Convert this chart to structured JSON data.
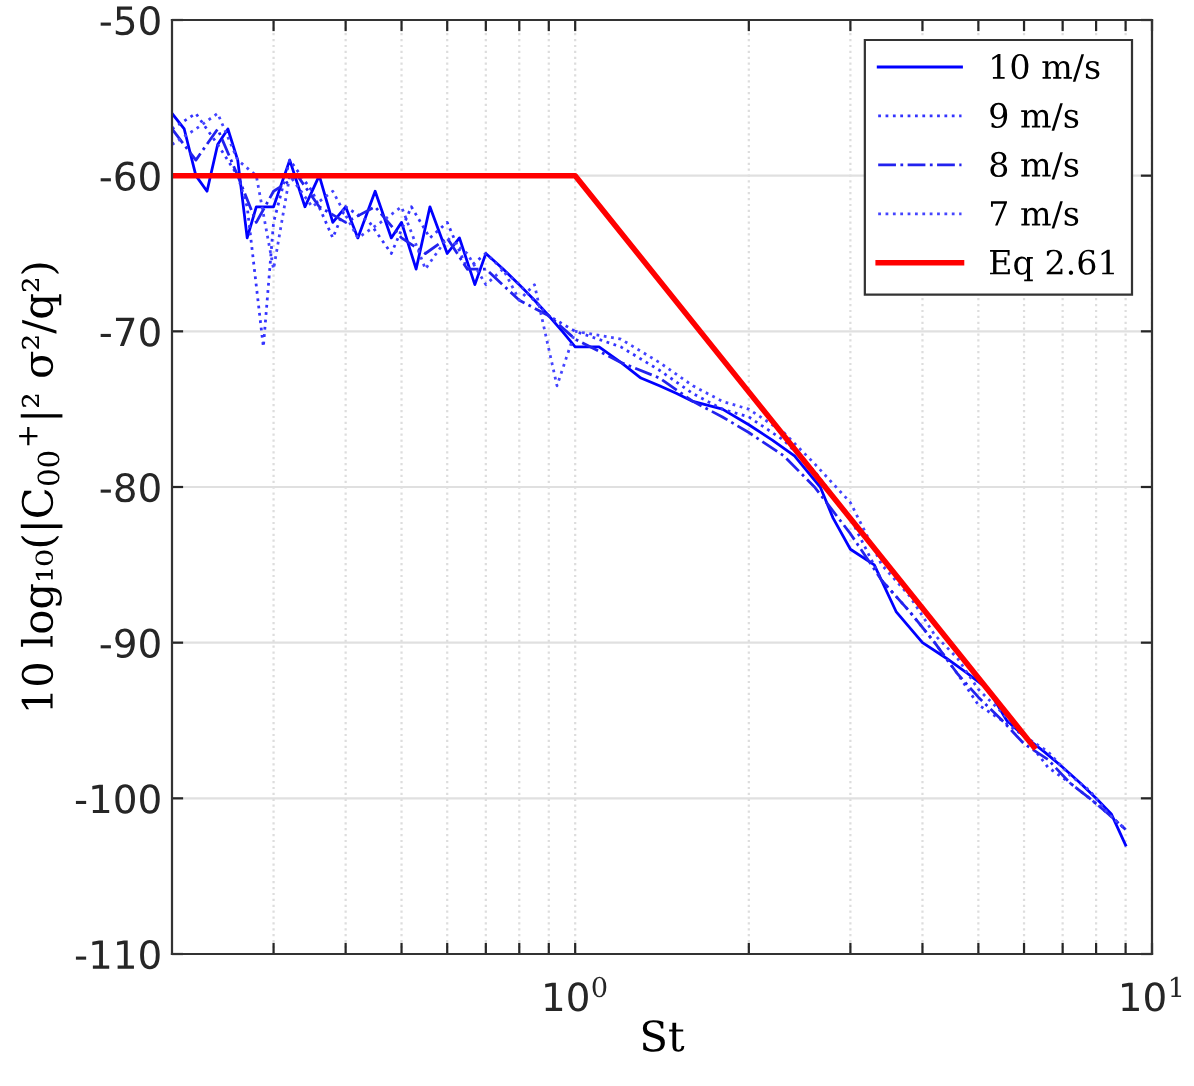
{
  "chart_data": {
    "type": "line",
    "xlabel": "St",
    "ylabel": "10 log₁₀(|C$_{00}$$^{+}$|² σ²/q²)",
    "log": "x",
    "xlim": [
      0.2,
      10
    ],
    "ylim": [
      -110,
      -50
    ],
    "xticks": [
      {
        "value": 0.3,
        "label": null
      },
      {
        "value": 0.4,
        "label": null
      },
      {
        "value": 0.5,
        "label": null
      },
      {
        "value": 0.6,
        "label": null
      },
      {
        "value": 0.7,
        "label": null
      },
      {
        "value": 0.8,
        "label": null
      },
      {
        "value": 0.9,
        "label": null
      },
      {
        "value": 1,
        "label": "10$^{0}$"
      },
      {
        "value": 2,
        "label": null
      },
      {
        "value": 3,
        "label": null
      },
      {
        "value": 4,
        "label": null
      },
      {
        "value": 5,
        "label": null
      },
      {
        "value": 6,
        "label": null
      },
      {
        "value": 7,
        "label": null
      },
      {
        "value": 8,
        "label": null
      },
      {
        "value": 9,
        "label": null
      },
      {
        "value": 10,
        "label": "10$^{1}$"
      }
    ],
    "yticks": [
      -110,
      -100,
      -90,
      -80,
      -70,
      -60,
      -50
    ],
    "grid": true,
    "legend": "top right",
    "series": [
      {
        "name": "10 m/s",
        "color": "#0000ff",
        "line_style": "solid",
        "x": [
          0.2,
          0.21,
          0.22,
          0.23,
          0.24,
          0.25,
          0.26,
          0.27,
          0.28,
          0.3,
          0.32,
          0.34,
          0.36,
          0.38,
          0.4,
          0.42,
          0.45,
          0.48,
          0.5,
          0.53,
          0.56,
          0.6,
          0.63,
          0.67,
          0.7,
          0.75,
          0.8,
          0.85,
          0.9,
          0.95,
          1.0,
          1.1,
          1.2,
          1.3,
          1.4,
          1.5,
          1.6,
          1.8,
          2.0,
          2.2,
          2.4,
          2.66,
          2.8,
          3.0,
          3.3,
          3.6,
          4.0,
          4.4,
          4.8,
          5.2,
          5.6,
          6.0,
          6.5,
          7.0,
          7.5,
          8.0,
          8.5,
          9.0
        ],
        "values": [
          -56,
          -57,
          -60,
          -61,
          -58,
          -57,
          -59,
          -64,
          -62,
          -62,
          -59,
          -62,
          -60,
          -63,
          -62,
          -64,
          -61,
          -64,
          -63,
          -66,
          -62,
          -65,
          -64,
          -67,
          -65,
          -66,
          -67,
          -68,
          -69,
          -70,
          -71,
          -71,
          -72,
          -73,
          -73.5,
          -74,
          -74.5,
          -75,
          -76,
          -77,
          -78,
          -80,
          -82,
          -84,
          -85,
          -88,
          -90,
          -91,
          -92,
          -93,
          -95,
          -96,
          -97,
          -98,
          -99,
          -100,
          -101,
          -103
        ]
      },
      {
        "name": "9 m/s",
        "color": "#3333ff",
        "line_style": "dotted",
        "x": [
          0.2,
          0.22,
          0.24,
          0.26,
          0.27,
          0.288,
          0.3,
          0.32,
          0.35,
          0.38,
          0.4,
          0.44,
          0.48,
          0.52,
          0.56,
          0.6,
          0.65,
          0.7,
          0.8,
          0.9,
          1.0,
          1.2,
          1.4,
          1.6,
          1.8,
          2.0,
          2.3,
          2.6,
          3.0,
          3.4,
          3.8,
          4.2,
          4.6,
          5.0,
          5.5,
          6.0,
          6.6,
          7.2,
          7.8,
          8.4,
          9.0
        ],
        "values": [
          -57,
          -56,
          -58,
          -60,
          -62,
          -71,
          -63,
          -59,
          -61,
          -64,
          -62,
          -63,
          -65,
          -62,
          -64,
          -63,
          -66,
          -65,
          -67,
          -69,
          -70,
          -71,
          -72.5,
          -74,
          -75,
          -75.5,
          -77,
          -79,
          -82,
          -86,
          -88,
          -90,
          -92,
          -94,
          -95,
          -96,
          -98,
          -99,
          -100,
          -101,
          -102
        ]
      },
      {
        "name": "8 m/s",
        "color": "#2222ee",
        "line_style": "dashdot",
        "x": [
          0.2,
          0.22,
          0.24,
          0.26,
          0.28,
          0.3,
          0.33,
          0.36,
          0.4,
          0.45,
          0.5,
          0.55,
          0.6,
          0.65,
          0.7,
          0.8,
          0.9,
          1.0,
          1.2,
          1.4,
          1.6,
          1.8,
          2.0,
          2.3,
          2.6,
          3.0,
          3.4,
          3.8,
          4.2,
          4.6,
          5.0,
          5.5,
          6.0,
          6.6,
          7.2,
          7.8,
          8.4,
          9.0
        ],
        "values": [
          -57,
          -59,
          -57,
          -60,
          -63,
          -61,
          -60,
          -62,
          -63,
          -62,
          -64,
          -65,
          -64,
          -66,
          -66,
          -68,
          -69,
          -70.5,
          -72,
          -73,
          -74.5,
          -75.5,
          -76.5,
          -78,
          -80,
          -83,
          -86,
          -88,
          -90,
          -92,
          -93.5,
          -95,
          -96.5,
          -97.5,
          -99,
          -100,
          -101,
          -102
        ]
      },
      {
        "name": "7 m/s",
        "color": "#4444ff",
        "line_style": "dotted",
        "x": [
          0.2,
          0.22,
          0.24,
          0.26,
          0.28,
          0.3,
          0.32,
          0.35,
          0.38,
          0.42,
          0.46,
          0.5,
          0.55,
          0.6,
          0.65,
          0.7,
          0.75,
          0.8,
          0.85,
          0.93,
          1.0,
          1.2,
          1.4,
          1.6,
          1.8,
          2.0,
          2.3,
          2.6,
          3.0,
          3.4,
          3.8,
          4.2,
          4.6,
          5.0,
          5.5,
          6.0,
          6.6,
          7.2,
          7.8,
          8.4,
          9.0
        ],
        "values": [
          -58,
          -57,
          -56,
          -59,
          -60,
          -66,
          -60,
          -62,
          -61,
          -64,
          -63,
          -62,
          -66,
          -64,
          -65,
          -67,
          -66,
          -68,
          -67,
          -73.5,
          -70,
          -70.5,
          -72,
          -73.5,
          -74.5,
          -75,
          -76.5,
          -78.5,
          -81,
          -85,
          -87,
          -89.5,
          -91,
          -93,
          -94.5,
          -96,
          -97,
          -98.5,
          -99.5,
          -101,
          -102
        ]
      },
      {
        "name": "Eq 2.61",
        "color": "#ff0000",
        "line_style": "solid",
        "x": [
          0.2,
          1.0,
          6.24
        ],
        "values": [
          -60,
          -60,
          -96.7
        ]
      }
    ]
  }
}
